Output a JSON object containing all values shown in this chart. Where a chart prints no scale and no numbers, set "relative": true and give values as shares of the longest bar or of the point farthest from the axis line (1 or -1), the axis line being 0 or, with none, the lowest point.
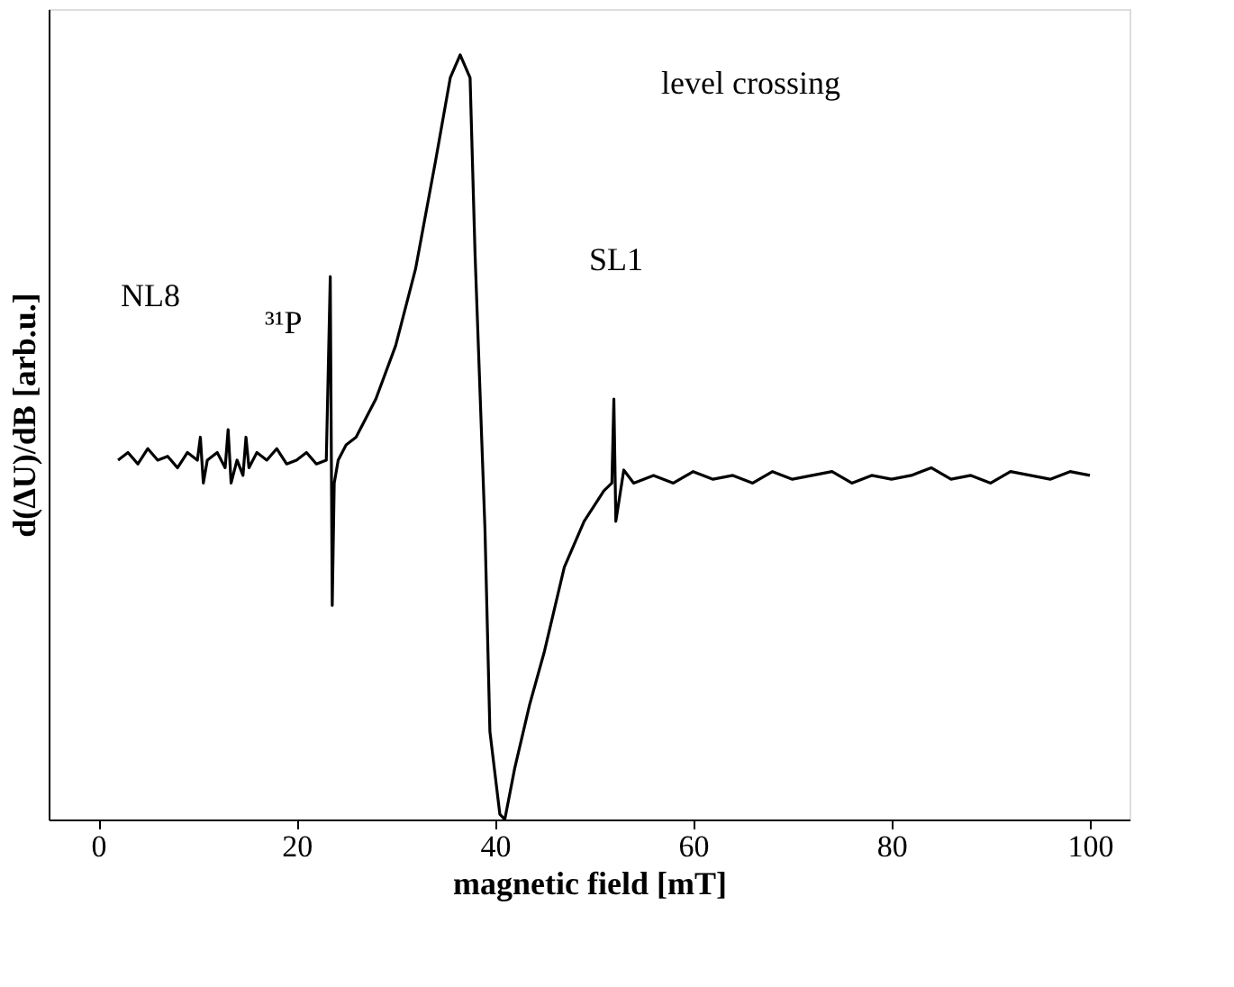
{
  "chart_data": {
    "type": "line",
    "relative": true,
    "xlabel": "magnetic field [mT]",
    "ylabel": "d(ΔU)/dB [arb.u.]",
    "xlim": [
      -5,
      104
    ],
    "xticks": [
      0,
      20,
      40,
      60,
      80,
      100
    ],
    "grid": false,
    "marker": "none",
    "line_style": "solid",
    "series": [
      {
        "color": "#000000",
        "x": [
          2,
          3,
          4,
          5,
          6,
          7,
          8,
          9,
          10,
          10.3,
          10.6,
          11,
          12,
          12.8,
          13.1,
          13.4,
          14,
          14.6,
          14.9,
          15.2,
          16,
          17,
          18,
          19,
          20,
          21,
          22,
          23,
          23.4,
          23.6,
          23.8,
          24.2,
          25,
          26,
          28,
          30,
          32,
          34,
          35.5,
          36.5,
          37.5,
          38,
          39,
          39.5,
          40.5,
          41,
          42,
          43.5,
          45,
          47,
          49,
          51,
          51.8,
          52,
          52.2,
          53,
          54,
          56,
          58,
          60,
          62,
          64,
          66,
          68,
          70,
          72,
          74,
          76,
          78,
          80,
          82,
          84,
          86,
          88,
          90,
          92,
          94,
          96,
          98,
          100
        ],
        "values": [
          0.47,
          0.48,
          0.465,
          0.485,
          0.47,
          0.475,
          0.46,
          0.48,
          0.47,
          0.5,
          0.44,
          0.47,
          0.48,
          0.46,
          0.51,
          0.44,
          0.47,
          0.45,
          0.5,
          0.46,
          0.48,
          0.47,
          0.485,
          0.465,
          0.47,
          0.48,
          0.465,
          0.47,
          0.71,
          0.28,
          0.44,
          0.47,
          0.49,
          0.5,
          0.55,
          0.62,
          0.72,
          0.86,
          0.97,
          1.0,
          0.97,
          0.74,
          0.38,
          0.115,
          0.007,
          0.0,
          0.067,
          0.15,
          0.22,
          0.33,
          0.39,
          0.43,
          0.44,
          0.55,
          0.39,
          0.457,
          0.44,
          0.45,
          0.44,
          0.455,
          0.445,
          0.45,
          0.44,
          0.455,
          0.445,
          0.45,
          0.455,
          0.44,
          0.45,
          0.445,
          0.45,
          0.46,
          0.445,
          0.45,
          0.44,
          0.455,
          0.45,
          0.445,
          0.455,
          0.45
        ]
      }
    ],
    "annotations": [
      "NL8",
      "³¹P",
      "SL1",
      "level crossing"
    ]
  }
}
